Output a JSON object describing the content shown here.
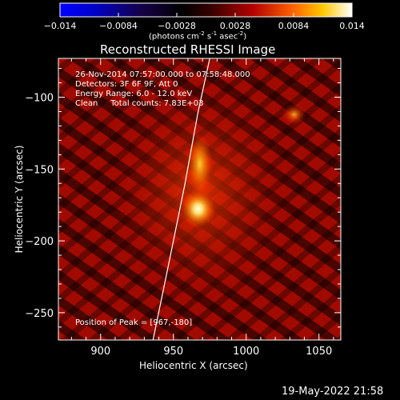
{
  "chart_data": {
    "type": "heatmap",
    "title": "Reconstructed RHESSI Image",
    "xlabel": "Heliocentric X (arcsec)",
    "ylabel": "Heliocentric Y (arcsec)",
    "xlim": [
      871,
      1065
    ],
    "ylim": [
      -269,
      -73
    ],
    "xticks": [
      900,
      950,
      1000,
      1050
    ],
    "yticks": [
      -100,
      -150,
      -200,
      -250
    ],
    "colorbar": {
      "range": [
        -0.014,
        0.014
      ],
      "ticks": [
        "-0.014",
        "-0.0084",
        "-0.0028",
        "0.0028",
        "0.0084",
        "0.014"
      ],
      "label": "(photons cm",
      "label_exp1": "-2",
      "label_mid": " s",
      "label_exp2": "-1",
      "label_mid2": " asec",
      "label_exp3": "-2",
      "label_end": ")"
    },
    "annotations": [
      "26-Nov-2014 07:57:00.000 to 07:58:48.000",
      "Detectors: 3F 6F 9F, Att 0",
      "Energy Range: 6.0 - 12.0 keV",
      "Clean     Total counts: 7.83E+03"
    ],
    "peak_label": "Position of Peak = [967,-180]",
    "peak": [
      967,
      -180
    ],
    "secondary_source": [
      1033,
      -112
    ],
    "limb_curve": [
      [
        936,
        -269
      ],
      [
        948,
        -210
      ],
      [
        958,
        -160
      ],
      [
        967,
        -110
      ],
      [
        975,
        -73
      ]
    ]
  },
  "timestamp": "19-May-2022 21:58"
}
